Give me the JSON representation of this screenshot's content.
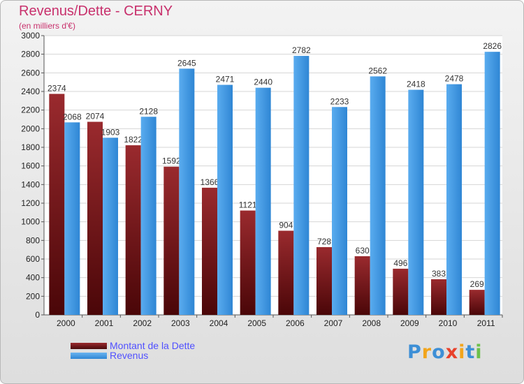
{
  "chart_data": {
    "type": "bar",
    "title": "Revenus/Dette - CERNY",
    "subtitle": "(en milliers d'€)",
    "xlabel": "",
    "ylabel": "",
    "ylim": [
      0,
      3000
    ],
    "yticks": [
      0,
      200,
      400,
      600,
      800,
      1000,
      1200,
      1400,
      1600,
      1800,
      2000,
      2200,
      2400,
      2600,
      2800,
      3000
    ],
    "grid": true,
    "categories": [
      "2000",
      "2001",
      "2002",
      "2003",
      "2004",
      "2005",
      "2006",
      "2007",
      "2008",
      "2009",
      "2010",
      "2011"
    ],
    "series": [
      {
        "name": "Montant de la Dette",
        "color": "#7a1a1e",
        "values": [
          2374,
          2074,
          1822,
          1592,
          1366,
          1121,
          904,
          728,
          630,
          496,
          383,
          269
        ],
        "labels": [
          "2374",
          "2074",
          "1822",
          "1592",
          "1366",
          "1121",
          "904",
          "728",
          "630",
          "496",
          "383",
          "269"
        ]
      },
      {
        "name": "Revenus",
        "color": "#3d9be9",
        "values": [
          2068,
          1903,
          2128,
          2645,
          2471,
          2440,
          2782,
          2233,
          2562,
          2418,
          2478,
          2826
        ],
        "labels": [
          "2068",
          "1903",
          "2128",
          "2645",
          "2471",
          "2440",
          "2782",
          "2233",
          "2562",
          "2418",
          "2478",
          "2826"
        ]
      }
    ],
    "legend": "bottom-left"
  },
  "logo": {
    "text": [
      "P",
      "r",
      "o",
      "x",
      "i",
      "t",
      "i"
    ],
    "colors": [
      "#3d8fd6",
      "#f2a51c",
      "#3d8fd6",
      "#e8412b",
      "#f2a51c",
      "#3d8fd6",
      "#6cc04a"
    ]
  }
}
